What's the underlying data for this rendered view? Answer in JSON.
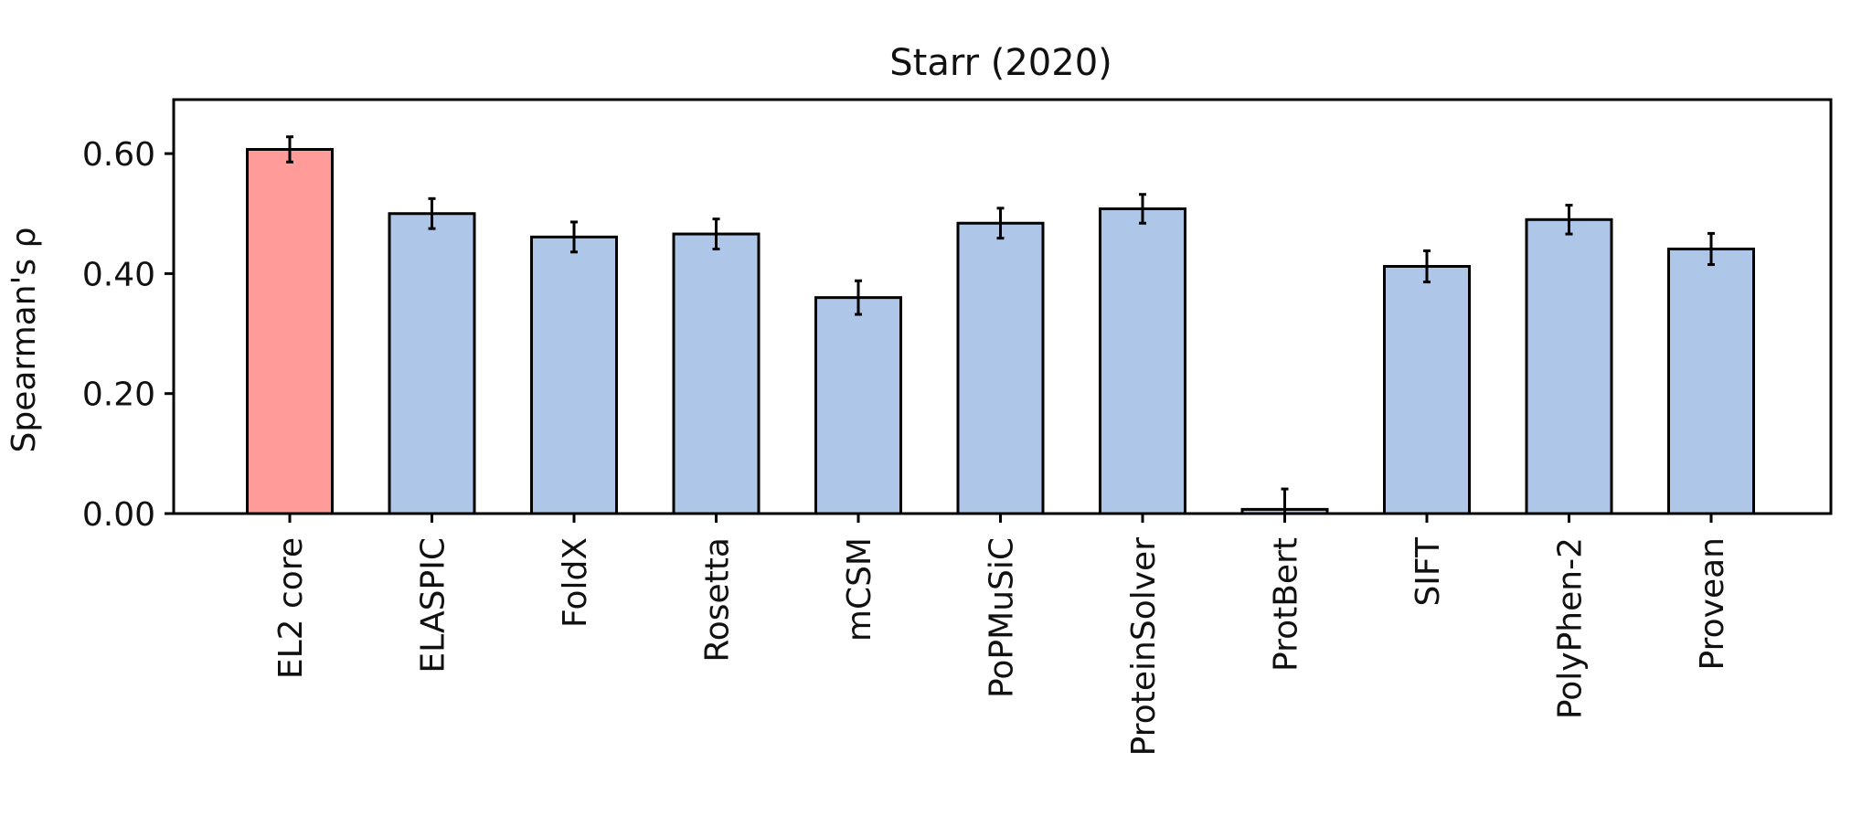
{
  "chart_data": {
    "type": "bar",
    "title": "Starr (2020)",
    "xlabel": "",
    "ylabel": "Spearman's ρ",
    "ylim": [
      0,
      0.69
    ],
    "yticks": [
      "0.00",
      "0.20",
      "0.40",
      "0.60"
    ],
    "ytick_values": [
      0,
      0.2,
      0.4,
      0.6
    ],
    "categories": [
      "EL2 core",
      "ELASPIC",
      "FoldX",
      "Rosetta",
      "mCSM",
      "PoPMuSiC",
      "ProteinSolver",
      "ProtBert",
      "SIFT",
      "PolyPhen-2",
      "Provean"
    ],
    "values": [
      0.607,
      0.5,
      0.461,
      0.466,
      0.36,
      0.484,
      0.508,
      0.007,
      0.412,
      0.49,
      0.441
    ],
    "errors": [
      0.021,
      0.025,
      0.025,
      0.025,
      0.028,
      0.025,
      0.024,
      0.034,
      0.026,
      0.024,
      0.026
    ],
    "colors": [
      "#FF9C9A",
      "#AEC7E8",
      "#AEC7E8",
      "#AEC7E8",
      "#AEC7E8",
      "#AEC7E8",
      "#AEC7E8",
      "#AEC7E8",
      "#AEC7E8",
      "#AEC7E8",
      "#AEC7E8"
    ],
    "grid": false,
    "legend": "none"
  }
}
